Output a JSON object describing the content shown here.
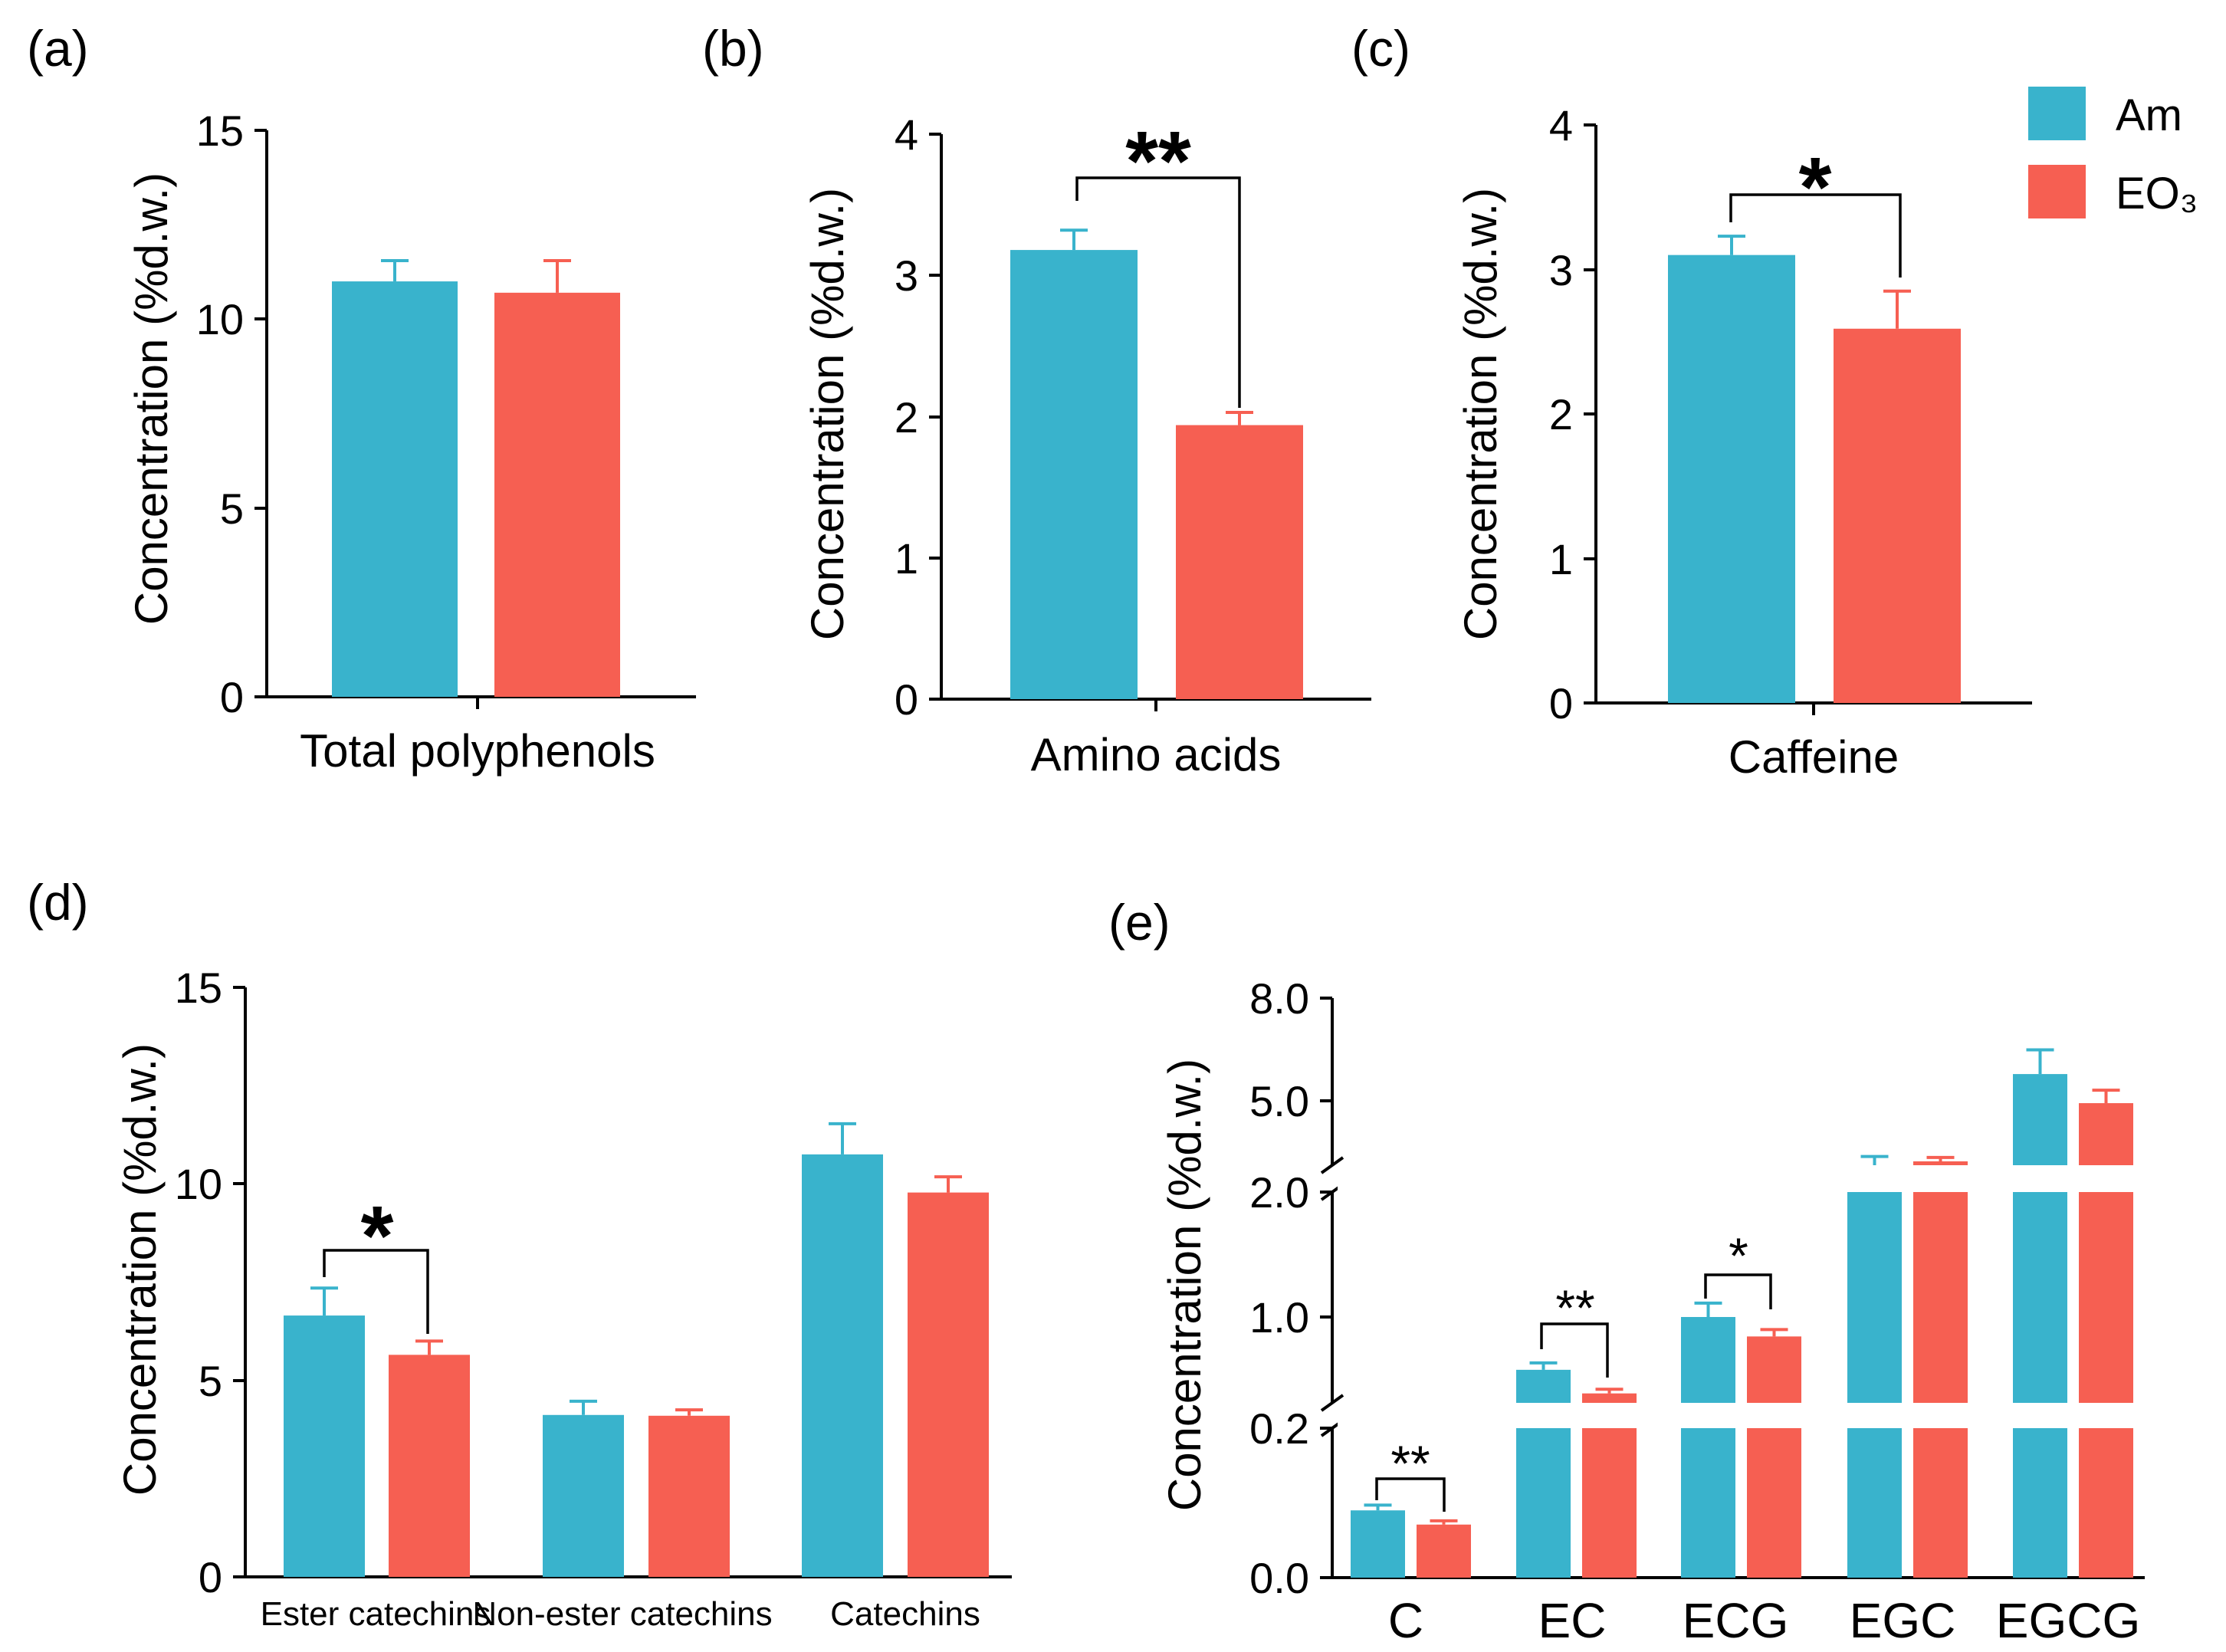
{
  "colors": {
    "Am": "#39b3cc",
    "EO3": "#f65f52"
  },
  "legend": [
    {
      "name": "Am",
      "color_key": "Am"
    },
    {
      "name": "EO₃",
      "color_key": "EO3"
    }
  ],
  "chart_data": [
    {
      "panel": "(a)",
      "type": "bar",
      "title": "",
      "xlabel": "Total polyphenols",
      "ylabel": "Concentration (%d.w.)",
      "ylim": [
        0,
        15
      ],
      "yticks": [
        "0",
        "5",
        "10",
        "15"
      ],
      "categories": [
        "Total polyphenols"
      ],
      "series": [
        {
          "name": "Am",
          "values": [
            11.0
          ],
          "errors": [
            0.55
          ]
        },
        {
          "name": "EO₃",
          "values": [
            10.7
          ],
          "errors": [
            0.85
          ]
        }
      ],
      "significance": []
    },
    {
      "panel": "(b)",
      "type": "bar",
      "title": "",
      "xlabel": "Amino acids",
      "ylabel": "Concentration (%d.w.)",
      "ylim": [
        0,
        4
      ],
      "yticks": [
        "0",
        "1",
        "2",
        "3",
        "4"
      ],
      "categories": [
        "Amino acids"
      ],
      "series": [
        {
          "name": "Am",
          "values": [
            3.18
          ],
          "errors": [
            0.14
          ]
        },
        {
          "name": "EO₃",
          "values": [
            1.94
          ],
          "errors": [
            0.09
          ]
        }
      ],
      "significance": [
        {
          "category": 0,
          "label": "**"
        }
      ]
    },
    {
      "panel": "(c)",
      "type": "bar",
      "title": "",
      "xlabel": "Caffeine",
      "ylabel": "Concentration (%d.w.)",
      "ylim": [
        0,
        4
      ],
      "yticks": [
        "0",
        "1",
        "2",
        "3",
        "4"
      ],
      "categories": [
        "Caffeine"
      ],
      "series": [
        {
          "name": "Am",
          "values": [
            3.1
          ],
          "errors": [
            0.13
          ]
        },
        {
          "name": "EO₃",
          "values": [
            2.59
          ],
          "errors": [
            0.26
          ]
        }
      ],
      "significance": [
        {
          "category": 0,
          "label": "*"
        }
      ]
    },
    {
      "panel": "(d)",
      "type": "bar",
      "title": "",
      "xlabel": "",
      "ylabel": "Concentration (%d.w.)",
      "ylim": [
        0,
        15
      ],
      "yticks": [
        "0",
        "5",
        "10",
        "15"
      ],
      "categories": [
        "Ester catechins",
        "Non-ester catechins",
        "Catechins"
      ],
      "series": [
        {
          "name": "Am",
          "values": [
            6.65,
            4.12,
            10.75
          ],
          "errors": [
            0.7,
            0.35,
            0.78
          ]
        },
        {
          "name": "EO₃",
          "values": [
            5.65,
            4.1,
            9.78
          ],
          "errors": [
            0.35,
            0.15,
            0.4
          ]
        }
      ],
      "significance": [
        {
          "category": 0,
          "label": "*"
        }
      ]
    },
    {
      "panel": "(e)",
      "type": "bar",
      "title": "",
      "xlabel": "",
      "ylabel": "Concentration (%d.w.)",
      "ylim": [
        0,
        8
      ],
      "yaxis_break": "segmented axis: 0.0–0.2, 0.2–1.0+, 2.0–8.0",
      "yticks": [
        "0.0",
        "0.2",
        "1.0",
        "2.0",
        "5.0",
        "8.0"
      ],
      "categories": [
        "C",
        "EC",
        "ECG",
        "EGC",
        "EGCG"
      ],
      "series": [
        {
          "name": "Am",
          "values": [
            0.09,
            0.62,
            1.0,
            2.75,
            5.65
          ],
          "errors": [
            0.007,
            0.05,
            0.1,
            0.35,
            0.75
          ]
        },
        {
          "name": "EO₃",
          "values": [
            0.071,
            0.45,
            0.86,
            2.95,
            4.75
          ],
          "errors": [
            0.005,
            0.03,
            0.05,
            0.12,
            0.4
          ]
        }
      ],
      "significance": [
        {
          "category": 0,
          "label": "**"
        },
        {
          "category": 1,
          "label": "**"
        },
        {
          "category": 2,
          "label": "*"
        }
      ]
    }
  ]
}
